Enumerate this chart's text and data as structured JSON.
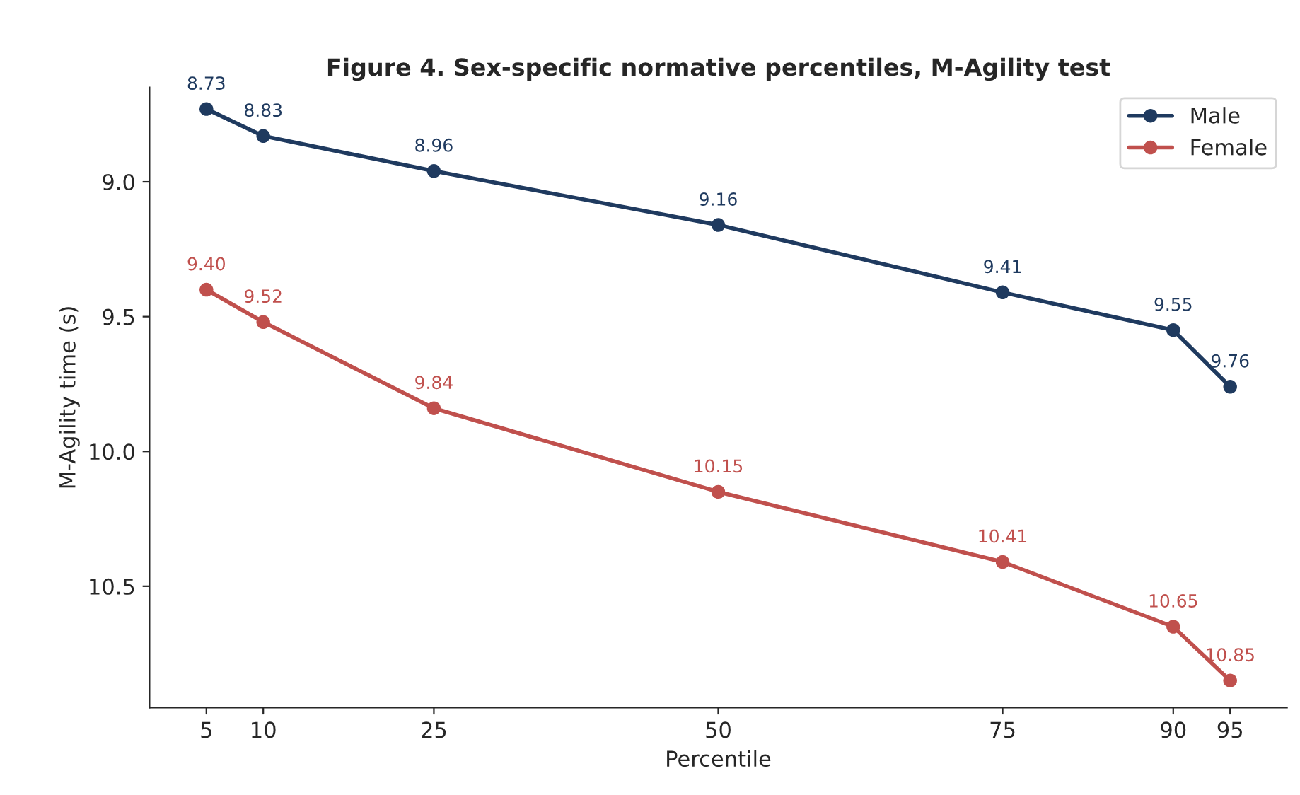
{
  "chart_data": {
    "type": "line",
    "title": "Figure 4. Sex-specific normative percentiles, M-Agility test",
    "xlabel": "Percentile",
    "ylabel": "M-Agility time (s)",
    "x": [
      5,
      10,
      25,
      50,
      75,
      90,
      95
    ],
    "series": [
      {
        "name": "Male",
        "color": "#1f3a5f",
        "values": [
          8.73,
          8.83,
          8.96,
          9.16,
          9.41,
          9.55,
          9.76
        ],
        "value_labels": [
          "8.73",
          "8.83",
          "8.96",
          "9.16",
          "9.41",
          "9.55",
          "9.76"
        ]
      },
      {
        "name": "Female",
        "color": "#c0504d",
        "values": [
          9.4,
          9.52,
          9.84,
          10.15,
          10.41,
          10.65,
          10.85
        ],
        "value_labels": [
          "9.40",
          "9.52",
          "9.84",
          "10.15",
          "10.41",
          "10.65",
          "10.85"
        ]
      }
    ],
    "xlim": [
      0,
      100
    ],
    "xticks": [
      5,
      10,
      25,
      50,
      75,
      90,
      95
    ],
    "ylim": [
      10.95,
      8.65
    ],
    "yticks": [
      {
        "value": 9,
        "label": "9.0"
      },
      9.5,
      {
        "value": 10,
        "label": "10.0"
      },
      10.5
    ],
    "legend": "top right",
    "marker": "circle",
    "line_style": "solid",
    "grid": false
  }
}
